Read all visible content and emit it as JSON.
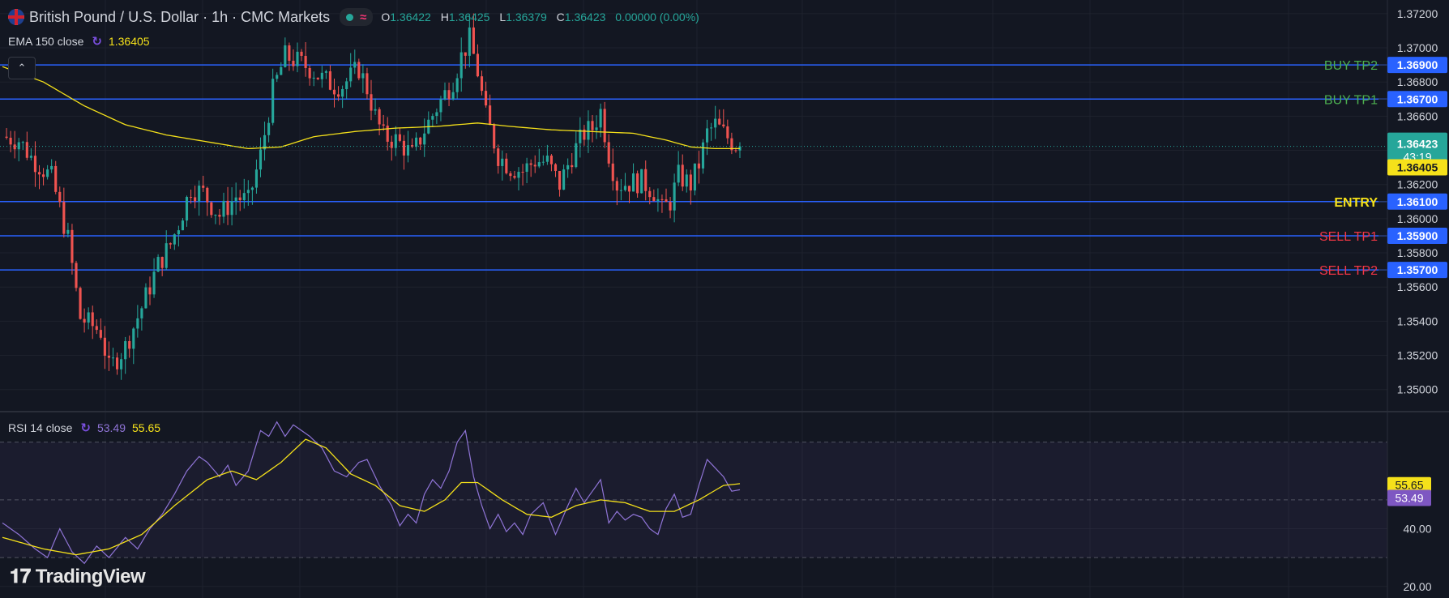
{
  "header": {
    "title": "British Pound / U.S. Dollar · 1h · CMC Markets",
    "ohlc": [
      {
        "k": "O",
        "v": "1.36422"
      },
      {
        "k": "H",
        "v": "1.36425"
      },
      {
        "k": "L",
        "v": "1.36379"
      },
      {
        "k": "C",
        "v": "1.36423"
      }
    ],
    "change": "0.00000 (0.00%)"
  },
  "ema_legend": {
    "label": "EMA 150 close",
    "value": "1.36405"
  },
  "rsi_legend": {
    "label": "RSI 14 close",
    "value1": "53.49",
    "value2": "55.65"
  },
  "logo_text": "TradingView",
  "colors": {
    "background": "#131722",
    "up": "#26a69a",
    "down": "#ef5350",
    "ema": "#f5e11a",
    "rsi": "#8f74d6",
    "level_line": "#2962ff",
    "buy_label": "#4caf50",
    "sell_label": "#f23645",
    "entry_label": "#f5e11a"
  },
  "chart_data": [
    {
      "type": "candlestick",
      "title": "British Pound / U.S. Dollar · 1h · CMC Markets",
      "y_ticks": [
        "1.37200",
        "1.37000",
        "1.36800",
        "1.36600",
        "1.36400",
        "1.36200",
        "1.36000",
        "1.35800",
        "1.35600",
        "1.35400",
        "1.35200",
        "1.35000"
      ],
      "ylim": [
        1.3488,
        1.3728
      ],
      "last_price": {
        "value": "1.36423",
        "countdown": "43:19"
      },
      "ema_value_label": "1.36405",
      "levels": [
        {
          "label": "BUY TP2",
          "value": "1.36900",
          "kind": "buy"
        },
        {
          "label": "BUY TP1",
          "value": "1.36700",
          "kind": "buy"
        },
        {
          "label": "ENTRY",
          "value": "1.36100",
          "kind": "entry"
        },
        {
          "label": "SELL TP1",
          "value": "1.35900",
          "kind": "sell"
        },
        {
          "label": "SELL TP2",
          "value": "1.35700",
          "kind": "sell"
        }
      ],
      "close_path": [
        [
          0,
          1.3648
        ],
        [
          4,
          1.3646
        ],
        [
          7,
          1.3636
        ],
        [
          12,
          1.3624
        ],
        [
          16,
          1.3588
        ],
        [
          19,
          1.3542
        ],
        [
          24,
          1.3534
        ],
        [
          26,
          1.3512
        ],
        [
          30,
          1.3525
        ],
        [
          34,
          1.3548
        ],
        [
          38,
          1.3573
        ],
        [
          41,
          1.3585
        ],
        [
          43,
          1.3597
        ],
        [
          46,
          1.3618
        ],
        [
          49,
          1.3615
        ],
        [
          51,
          1.3608
        ],
        [
          53,
          1.3602
        ],
        [
          57,
          1.3613
        ],
        [
          60,
          1.361
        ],
        [
          63,
          1.3637
        ],
        [
          66,
          1.3675
        ],
        [
          69,
          1.3695
        ],
        [
          72,
          1.3692
        ],
        [
          75,
          1.3688
        ],
        [
          78,
          1.3682
        ],
        [
          81,
          1.3678
        ],
        [
          83,
          1.3678
        ],
        [
          85,
          1.3683
        ],
        [
          87,
          1.3688
        ],
        [
          89,
          1.3676
        ],
        [
          91,
          1.366
        ],
        [
          93,
          1.3648
        ],
        [
          96,
          1.3646
        ],
        [
          98,
          1.3642
        ],
        [
          100,
          1.3637
        ],
        [
          103,
          1.3652
        ],
        [
          106,
          1.3665
        ],
        [
          108,
          1.3673
        ],
        [
          110,
          1.3681
        ],
        [
          112,
          1.3695
        ],
        [
          114,
          1.3705
        ],
        [
          116,
          1.3686
        ],
        [
          118,
          1.366
        ],
        [
          121,
          1.3637
        ],
        [
          124,
          1.363
        ],
        [
          127,
          1.3628
        ],
        [
          130,
          1.3634
        ],
        [
          133,
          1.3633
        ],
        [
          136,
          1.362
        ],
        [
          139,
          1.3637
        ],
        [
          142,
          1.365
        ],
        [
          144,
          1.3653
        ],
        [
          146,
          1.3663
        ],
        [
          148,
          1.3638
        ],
        [
          150,
          1.362
        ],
        [
          153,
          1.3621
        ],
        [
          156,
          1.3622
        ],
        [
          159,
          1.3616
        ],
        [
          161,
          1.3605
        ],
        [
          163,
          1.361
        ],
        [
          165,
          1.3625
        ],
        [
          168,
          1.362
        ],
        [
          170,
          1.3632
        ],
        [
          172,
          1.365
        ],
        [
          174,
          1.3655
        ],
        [
          176,
          1.365
        ],
        [
          178,
          1.3645
        ],
        [
          180,
          1.3642
        ]
      ],
      "ema": [
        [
          0,
          1.3689
        ],
        [
          10,
          1.368
        ],
        [
          20,
          1.3666
        ],
        [
          30,
          1.3655
        ],
        [
          40,
          1.3649
        ],
        [
          50,
          1.3645
        ],
        [
          60,
          1.3641
        ],
        [
          68,
          1.3642
        ],
        [
          76,
          1.3648
        ],
        [
          86,
          1.3651
        ],
        [
          96,
          1.3653
        ],
        [
          106,
          1.3654
        ],
        [
          116,
          1.3656
        ],
        [
          124,
          1.3654
        ],
        [
          134,
          1.3652
        ],
        [
          144,
          1.3651
        ],
        [
          154,
          1.365
        ],
        [
          162,
          1.3646
        ],
        [
          168,
          1.3642
        ],
        [
          174,
          1.3641
        ],
        [
          180,
          1.3641
        ]
      ]
    },
    {
      "type": "line",
      "title": "RSI 14 close",
      "y_ticks": [
        "40.00",
        "20.00"
      ],
      "bands": {
        "upper": 70,
        "middle": 50,
        "lower": 30
      },
      "ylim": [
        16,
        80
      ],
      "series": [
        {
          "name": "RSI",
          "value_label": "53.49",
          "values": [
            [
              0,
              42
            ],
            [
              4,
              38
            ],
            [
              8,
              33
            ],
            [
              11,
              30
            ],
            [
              14,
              40
            ],
            [
              17,
              32
            ],
            [
              20,
              28
            ],
            [
              23,
              34
            ],
            [
              26,
              30
            ],
            [
              30,
              37
            ],
            [
              33,
              33
            ],
            [
              36,
              40
            ],
            [
              39,
              45
            ],
            [
              42,
              52
            ],
            [
              45,
              60
            ],
            [
              48,
              65
            ],
            [
              50,
              63
            ],
            [
              53,
              58
            ],
            [
              55,
              62
            ],
            [
              57,
              55
            ],
            [
              60,
              60
            ],
            [
              63,
              74
            ],
            [
              65,
              72
            ],
            [
              67,
              77
            ],
            [
              69,
              72
            ],
            [
              71,
              76
            ],
            [
              73,
              74
            ],
            [
              75,
              72
            ],
            [
              78,
              68
            ],
            [
              81,
              60
            ],
            [
              84,
              58
            ],
            [
              87,
              63
            ],
            [
              89,
              64
            ],
            [
              92,
              55
            ],
            [
              95,
              48
            ],
            [
              97,
              41
            ],
            [
              99,
              45
            ],
            [
              101,
              42
            ],
            [
              103,
              52
            ],
            [
              105,
              57
            ],
            [
              107,
              54
            ],
            [
              109,
              60
            ],
            [
              111,
              70
            ],
            [
              113,
              74
            ],
            [
              115,
              58
            ],
            [
              117,
              48
            ],
            [
              119,
              40
            ],
            [
              121,
              45
            ],
            [
              123,
              39
            ],
            [
              125,
              42
            ],
            [
              127,
              38
            ],
            [
              129,
              45
            ],
            [
              132,
              49
            ],
            [
              135,
              38
            ],
            [
              138,
              48
            ],
            [
              140,
              54
            ],
            [
              142,
              49
            ],
            [
              144,
              53
            ],
            [
              146,
              57
            ],
            [
              148,
              42
            ],
            [
              150,
              46
            ],
            [
              152,
              43
            ],
            [
              154,
              45
            ],
            [
              156,
              44
            ],
            [
              158,
              40
            ],
            [
              160,
              38
            ],
            [
              162,
              47
            ],
            [
              164,
              52
            ],
            [
              166,
              44
            ],
            [
              168,
              45
            ],
            [
              170,
              55
            ],
            [
              172,
              64
            ],
            [
              174,
              61
            ],
            [
              176,
              58
            ],
            [
              178,
              53
            ],
            [
              180,
              53.5
            ]
          ]
        },
        {
          "name": "RSI-based MA",
          "value_label": "55.65",
          "values": [
            [
              0,
              37
            ],
            [
              10,
              33
            ],
            [
              18,
              31
            ],
            [
              26,
              33
            ],
            [
              34,
              38
            ],
            [
              42,
              48
            ],
            [
              50,
              57
            ],
            [
              56,
              60
            ],
            [
              62,
              57
            ],
            [
              68,
              63
            ],
            [
              74,
              71
            ],
            [
              79,
              68
            ],
            [
              85,
              59
            ],
            [
              91,
              55
            ],
            [
              97,
              48
            ],
            [
              103,
              46
            ],
            [
              108,
              50
            ],
            [
              112,
              56
            ],
            [
              116,
              56
            ],
            [
              122,
              50
            ],
            [
              128,
              45
            ],
            [
              134,
              44
            ],
            [
              140,
              48
            ],
            [
              146,
              50
            ],
            [
              152,
              49
            ],
            [
              158,
              46
            ],
            [
              164,
              46
            ],
            [
              170,
              50
            ],
            [
              176,
              55
            ],
            [
              180,
              55.6
            ]
          ]
        }
      ]
    }
  ]
}
